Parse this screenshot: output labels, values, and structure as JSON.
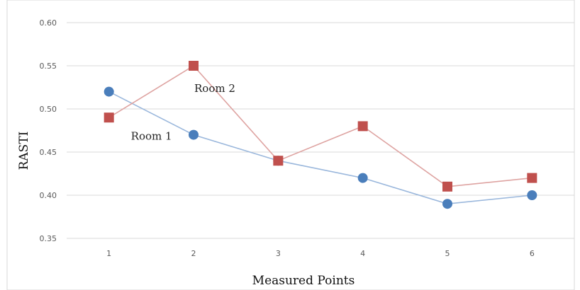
{
  "chart_data": {
    "type": "line",
    "xlabel": "Measured Points",
    "ylabel": "RASTI",
    "categories": [
      "1",
      "2",
      "3",
      "4",
      "5",
      "6"
    ],
    "ylim": [
      0.35,
      0.6
    ],
    "yticks": [
      "0.35",
      "0.40",
      "0.45",
      "0.50",
      "0.55",
      "0.60"
    ],
    "grid": true,
    "series": [
      {
        "name": "Room 1",
        "marker": "circle",
        "color": "#4a7ebb",
        "line_color": "#9ab7dc",
        "values": [
          0.52,
          0.47,
          0.44,
          0.42,
          0.39,
          0.4
        ]
      },
      {
        "name": "Room 2",
        "marker": "square",
        "color": "#c0504d",
        "line_color": "#dea3a1",
        "values": [
          0.49,
          0.55,
          0.44,
          0.48,
          0.41,
          0.42
        ]
      }
    ],
    "annotations": [
      {
        "text": "Room 1",
        "series": 0
      },
      {
        "text": "Room 2",
        "series": 1
      }
    ]
  }
}
